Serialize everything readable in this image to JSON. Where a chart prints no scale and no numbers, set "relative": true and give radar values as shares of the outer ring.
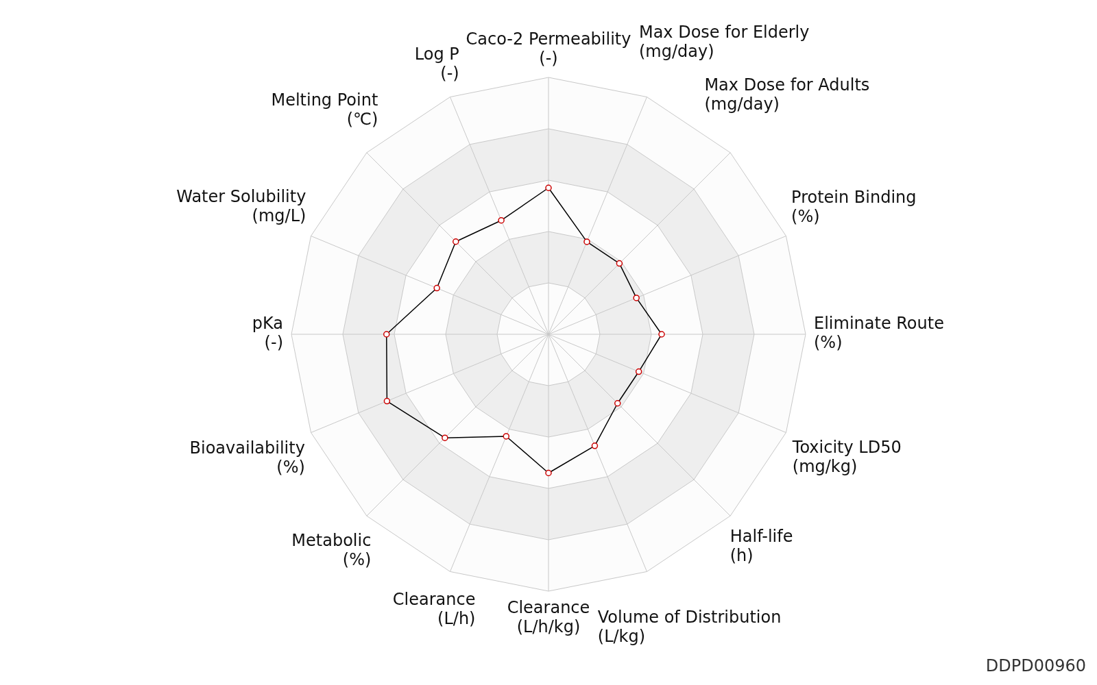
{
  "chart_data": {
    "type": "radar",
    "relative": true,
    "grid": true,
    "marker": "circle",
    "legend": false,
    "categories": [
      "Caco-2 Permeability\n(-)",
      "Max Dose for Elderly\n(mg/day)",
      "Max Dose for Adults\n(mg/day)",
      "Protein Binding\n(%)",
      "Eliminate Route\n(%)",
      "Toxicity LD50\n(mg/kg)",
      "Half-life\n(h)",
      "Volume of Distribution\n(L/kg)",
      "Clearance\n(L/h/kg)",
      "Clearance\n(L/h)",
      "Metabolic\n(%)",
      "Bioavailability\n(%)",
      "pKa\n(-)",
      "Water Solubility\n(mg/L)",
      "Melting Point\n(℃)",
      "Log P\n(-)"
    ],
    "series": [
      {
        "color": "#000000",
        "values": [
          0.57,
          0.39,
          0.39,
          0.37,
          0.44,
          0.38,
          0.38,
          0.47,
          0.54,
          0.43,
          0.57,
          0.68,
          0.63,
          0.47,
          0.51,
          0.48
        ]
      }
    ],
    "annotations": [
      "DDPD00960"
    ]
  }
}
